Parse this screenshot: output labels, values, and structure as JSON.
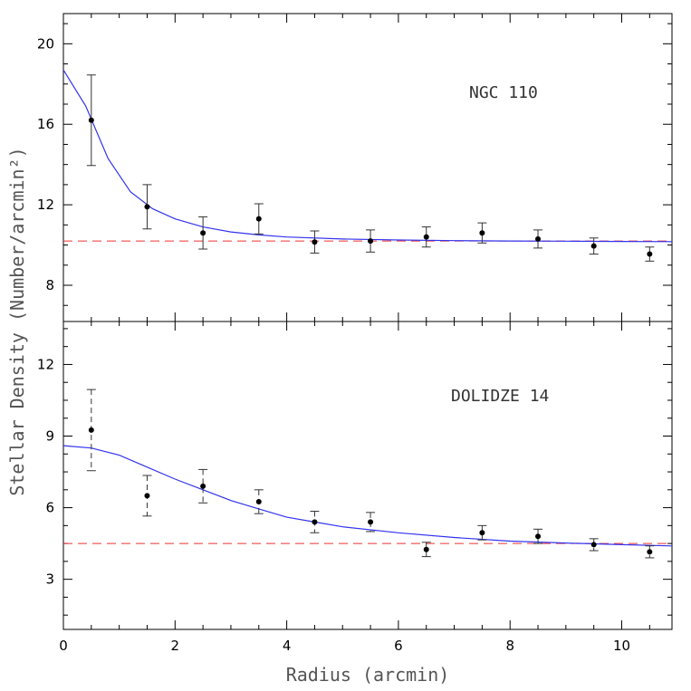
{
  "chart_data": [
    {
      "type": "scatter",
      "title": "NGC 110",
      "xlim": [
        0,
        10.9
      ],
      "ylim": [
        6.2,
        21.5
      ],
      "yticks": [
        8,
        12,
        16,
        20
      ],
      "points": {
        "x": [
          0.5,
          1.5,
          2.5,
          3.5,
          4.5,
          5.5,
          6.5,
          7.5,
          8.5,
          9.5,
          10.5
        ],
        "y": [
          16.2,
          11.9,
          10.6,
          11.3,
          10.15,
          10.2,
          10.4,
          10.6,
          10.3,
          9.95,
          9.55
        ],
        "err": [
          2.25,
          1.1,
          0.8,
          0.75,
          0.55,
          0.55,
          0.5,
          0.5,
          0.45,
          0.4,
          0.35
        ]
      },
      "fit": {
        "x": [
          0,
          0.4,
          0.8,
          1.2,
          1.6,
          2.0,
          2.5,
          3.0,
          3.5,
          4.0,
          5.0,
          6.0,
          7.0,
          8.0,
          9.0,
          10.0,
          10.9
        ],
        "y": [
          18.7,
          16.9,
          14.3,
          12.65,
          11.8,
          11.3,
          10.9,
          10.65,
          10.5,
          10.4,
          10.3,
          10.25,
          10.22,
          10.2,
          10.19,
          10.18,
          10.17
        ]
      },
      "background_level": 10.2,
      "dashed_error_bars": false
    },
    {
      "type": "scatter",
      "title": "DOLIDZE 14",
      "xlim": [
        0,
        10.9
      ],
      "ylim": [
        0.9,
        13.8
      ],
      "yticks": [
        3,
        6,
        9,
        12
      ],
      "points": {
        "x": [
          0.5,
          1.5,
          2.5,
          3.5,
          4.5,
          5.5,
          6.5,
          7.5,
          8.5,
          9.5,
          10.5
        ],
        "y": [
          9.25,
          6.5,
          6.9,
          6.25,
          5.4,
          5.4,
          4.25,
          4.95,
          4.8,
          4.45,
          4.15
        ],
        "err": [
          1.7,
          0.85,
          0.7,
          0.5,
          0.45,
          0.4,
          0.3,
          0.3,
          0.3,
          0.25,
          0.25
        ]
      },
      "fit": {
        "x": [
          0,
          0.5,
          1.0,
          1.5,
          2.0,
          2.5,
          3.0,
          3.5,
          4.0,
          4.5,
          5.0,
          6.0,
          7.0,
          8.0,
          9.0,
          10.0,
          10.9
        ],
        "y": [
          8.6,
          8.5,
          8.2,
          7.7,
          7.2,
          6.75,
          6.3,
          5.95,
          5.6,
          5.4,
          5.2,
          4.95,
          4.75,
          4.6,
          4.52,
          4.45,
          4.4
        ]
      },
      "background_level": 4.5,
      "dashed_error_bars": true
    }
  ],
  "xticks": [
    "0",
    "2",
    "4",
    "6",
    "8",
    "10"
  ],
  "xtick_values": [
    0,
    2,
    4,
    6,
    8,
    10
  ],
  "xlabel": "Radius (arcmin)",
  "ylabel": "Stellar Density (Number/arcmin²)",
  "colors": {
    "fit": "#3333ee",
    "background": "#ee3333",
    "points": "#000000"
  }
}
